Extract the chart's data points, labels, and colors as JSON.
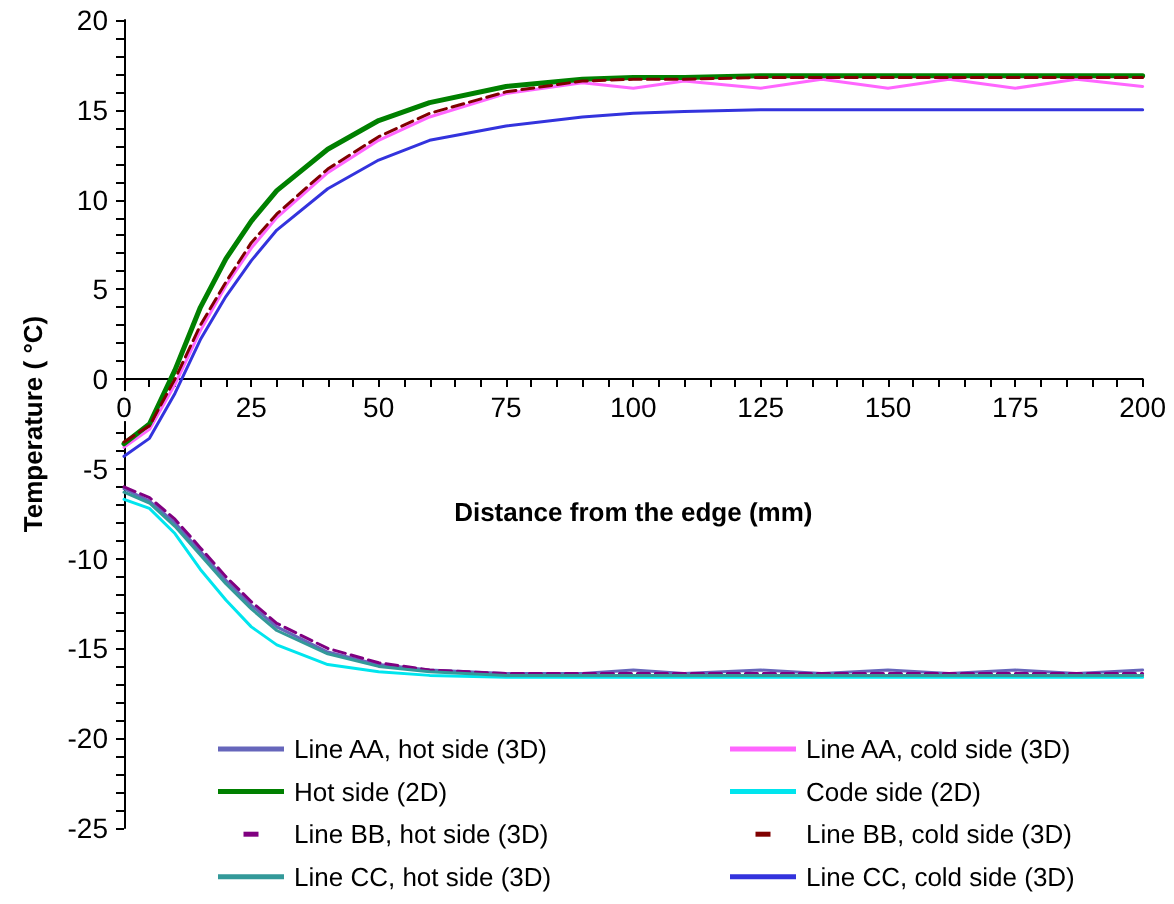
{
  "chart_data": {
    "type": "line",
    "xlabel": "Distance from the edge (mm)",
    "ylabel": "Temperature ( °C)",
    "x": [
      0,
      5,
      10,
      15,
      20,
      25,
      30,
      40,
      50,
      60,
      75,
      90,
      100,
      110,
      125,
      137,
      150,
      162,
      175,
      187,
      200
    ],
    "xlim": [
      0,
      200
    ],
    "xticks": [
      0,
      {
        "value": 5,
        "label": null
      },
      {
        "value": 10,
        "label": null
      },
      {
        "value": 15,
        "label": null
      },
      {
        "value": 20,
        "label": null
      },
      25,
      {
        "value": 30,
        "label": null
      },
      {
        "value": 35,
        "label": null
      },
      {
        "value": 40,
        "label": null
      },
      {
        "value": 45,
        "label": null
      },
      50,
      {
        "value": 55,
        "label": null
      },
      {
        "value": 60,
        "label": null
      },
      {
        "value": 65,
        "label": null
      },
      {
        "value": 70,
        "label": null
      },
      75,
      {
        "value": 80,
        "label": null
      },
      {
        "value": 85,
        "label": null
      },
      {
        "value": 90,
        "label": null
      },
      {
        "value": 95,
        "label": null
      },
      100,
      {
        "value": 105,
        "label": null
      },
      {
        "value": 110,
        "label": null
      },
      {
        "value": 115,
        "label": null
      },
      {
        "value": 120,
        "label": null
      },
      125,
      {
        "value": 130,
        "label": null
      },
      {
        "value": 135,
        "label": null
      },
      {
        "value": 140,
        "label": null
      },
      {
        "value": 145,
        "label": null
      },
      150,
      {
        "value": 155,
        "label": null
      },
      {
        "value": 160,
        "label": null
      },
      {
        "value": 165,
        "label": null
      },
      {
        "value": 170,
        "label": null
      },
      175,
      {
        "value": 180,
        "label": null
      },
      {
        "value": 185,
        "label": null
      },
      {
        "value": 190,
        "label": null
      },
      {
        "value": 195,
        "label": null
      },
      200
    ],
    "ylim": [
      -25,
      20
    ],
    "yticks": [
      -25,
      {
        "value": -24,
        "label": null
      },
      {
        "value": -23,
        "label": null
      },
      {
        "value": -22,
        "label": null
      },
      {
        "value": -21,
        "label": null
      },
      -20,
      {
        "value": -19,
        "label": null
      },
      {
        "value": -18,
        "label": null
      },
      {
        "value": -17,
        "label": null
      },
      {
        "value": -16,
        "label": null
      },
      -15,
      {
        "value": -14,
        "label": null
      },
      {
        "value": -13,
        "label": null
      },
      {
        "value": -12,
        "label": null
      },
      {
        "value": -11,
        "label": null
      },
      -10,
      {
        "value": -9,
        "label": null
      },
      {
        "value": -8,
        "label": null
      },
      {
        "value": -7,
        "label": null
      },
      {
        "value": -6,
        "label": null
      },
      -5,
      {
        "value": -4,
        "label": null
      },
      {
        "value": -3,
        "label": null
      },
      {
        "value": -2,
        "label": null
      },
      {
        "value": -1,
        "label": null
      },
      0,
      {
        "value": 1,
        "label": null
      },
      {
        "value": 2,
        "label": null
      },
      {
        "value": 3,
        "label": null
      },
      {
        "value": 4,
        "label": null
      },
      5,
      {
        "value": 6,
        "label": null
      },
      {
        "value": 7,
        "label": null
      },
      {
        "value": 8,
        "label": null
      },
      {
        "value": 9,
        "label": null
      },
      10,
      {
        "value": 11,
        "label": null
      },
      {
        "value": 12,
        "label": null
      },
      {
        "value": 13,
        "label": null
      },
      {
        "value": 14,
        "label": null
      },
      15,
      {
        "value": 16,
        "label": null
      },
      {
        "value": 17,
        "label": null
      },
      {
        "value": 18,
        "label": null
      },
      {
        "value": 19,
        "label": null
      },
      20
    ],
    "grid": false,
    "legend": "bottom",
    "marker": "none",
    "series": [
      {
        "name": "Line AA, hot side (3D)",
        "color": "#6666bb",
        "values": [
          -6.1,
          -6.8,
          -8,
          -9.6,
          -11.2,
          -12.6,
          -13.8,
          -15.2,
          -15.9,
          -16.2,
          -16.4,
          -16.4,
          -16.2,
          -16.4,
          -16.2,
          -16.4,
          -16.2,
          -16.4,
          -16.2,
          -16.4,
          -16.2
        ]
      },
      {
        "name": "Line AA, cold side (3D)",
        "color": "#ff66ff",
        "values": [
          -3.8,
          -2.8,
          -0.3,
          2.7,
          5.2,
          7.3,
          9,
          11.5,
          13.3,
          14.6,
          15.9,
          16.5,
          16.2,
          16.6,
          16.2,
          16.7,
          16.2,
          16.7,
          16.2,
          16.7,
          16.3
        ]
      },
      {
        "name": "Hot side (2D)",
        "color": "#008000",
        "values": [
          -3.6,
          -2.5,
          0.5,
          4,
          6.7,
          8.8,
          10.5,
          12.8,
          14.4,
          15.4,
          16.3,
          16.7,
          16.8,
          16.8,
          16.9,
          16.9,
          16.9,
          16.9,
          16.9,
          16.9,
          16.9
        ]
      },
      {
        "name": "Code side (2D)",
        "color": "#00e5ee",
        "values": [
          -6.7,
          -7.2,
          -8.6,
          -10.6,
          -12.3,
          -13.8,
          -14.8,
          -15.9,
          -16.3,
          -16.5,
          -16.6,
          -16.6,
          -16.6,
          -16.6,
          -16.6,
          -16.6,
          -16.6,
          -16.6,
          -16.6,
          -16.6,
          -16.6
        ]
      },
      {
        "name": "Line BB, hot side (3D)",
        "color": "#800080",
        "line_style": "dashed",
        "values": [
          -6,
          -6.6,
          -7.8,
          -9.4,
          -11,
          -12.4,
          -13.6,
          -15,
          -15.8,
          -16.2,
          -16.4,
          -16.4,
          -16.4,
          -16.4,
          -16.4,
          -16.4,
          -16.4,
          -16.4,
          -16.4,
          -16.4,
          -16.4
        ]
      },
      {
        "name": "Line BB, cold side (3D)",
        "color": "#800000",
        "line_style": "dashed",
        "values": [
          -3.5,
          -2.6,
          0,
          3,
          5.4,
          7.6,
          9.2,
          11.7,
          13.5,
          14.8,
          16,
          16.6,
          16.7,
          16.7,
          16.8,
          16.8,
          16.8,
          16.8,
          16.8,
          16.8,
          16.8
        ]
      },
      {
        "name": "Line CC, hot side (3D)",
        "color": "#339999",
        "values": [
          -6.3,
          -6.9,
          -8.2,
          -9.8,
          -11.4,
          -12.8,
          -14,
          -15.3,
          -16,
          -16.3,
          -16.5,
          -16.5,
          -16.5,
          -16.5,
          -16.5,
          -16.5,
          -16.5,
          -16.5,
          -16.5,
          -16.5,
          -16.5
        ]
      },
      {
        "name": "Line CC, cold side (3D)",
        "color": "#3333dd",
        "values": [
          -4.3,
          -3.3,
          -0.8,
          2.2,
          4.6,
          6.6,
          8.3,
          10.6,
          12.2,
          13.3,
          14.1,
          14.6,
          14.8,
          14.9,
          15,
          15,
          15,
          15,
          15,
          15,
          15
        ]
      }
    ]
  }
}
